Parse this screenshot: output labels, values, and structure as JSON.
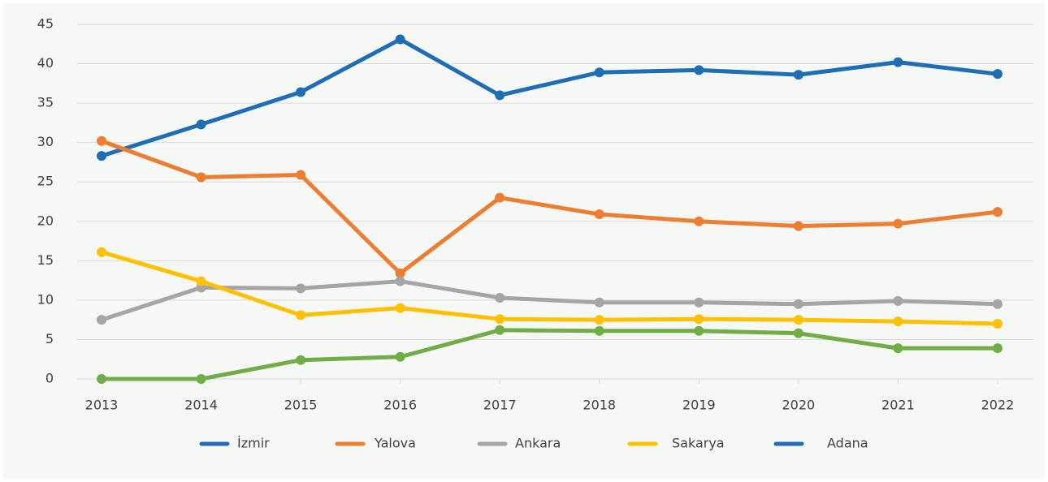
{
  "chart_data": {
    "type": "line",
    "categories": [
      "2013",
      "2014",
      "2015",
      "2016",
      "2017",
      "2018",
      "2019",
      "2020",
      "2021",
      "2022"
    ],
    "series": [
      {
        "name": "İzmir",
        "color": "#1f6db4",
        "values": [
          28.3,
          32.3,
          36.4,
          43.1,
          36.0,
          38.9,
          39.2,
          38.6,
          40.2,
          38.7
        ]
      },
      {
        "name": "Yalova",
        "color": "#ed7d31",
        "values": [
          30.2,
          25.6,
          25.9,
          13.4,
          23.0,
          20.9,
          20.0,
          19.4,
          19.7,
          21.2
        ]
      },
      {
        "name": "Ankara",
        "color": "#a5a5a5",
        "values": [
          7.5,
          11.6,
          11.5,
          12.4,
          10.3,
          9.7,
          9.7,
          9.5,
          9.9,
          9.5
        ]
      },
      {
        "name": "Sakarya",
        "color": "#ffc000",
        "values": [
          16.1,
          12.4,
          8.1,
          9.0,
          7.6,
          7.5,
          7.6,
          7.5,
          7.3,
          7.0
        ]
      },
      {
        "name": "Adana",
        "color": "#70ad47",
        "legend_color": "#1f6db4",
        "values": [
          0,
          0,
          2.4,
          2.8,
          6.2,
          6.1,
          6.1,
          5.8,
          3.9,
          3.9
        ]
      }
    ],
    "ylim": [
      0,
      45
    ],
    "yticks": [
      0,
      5,
      10,
      15,
      20,
      25,
      30,
      35,
      40,
      45
    ],
    "grid": true,
    "legend": "bottom"
  }
}
